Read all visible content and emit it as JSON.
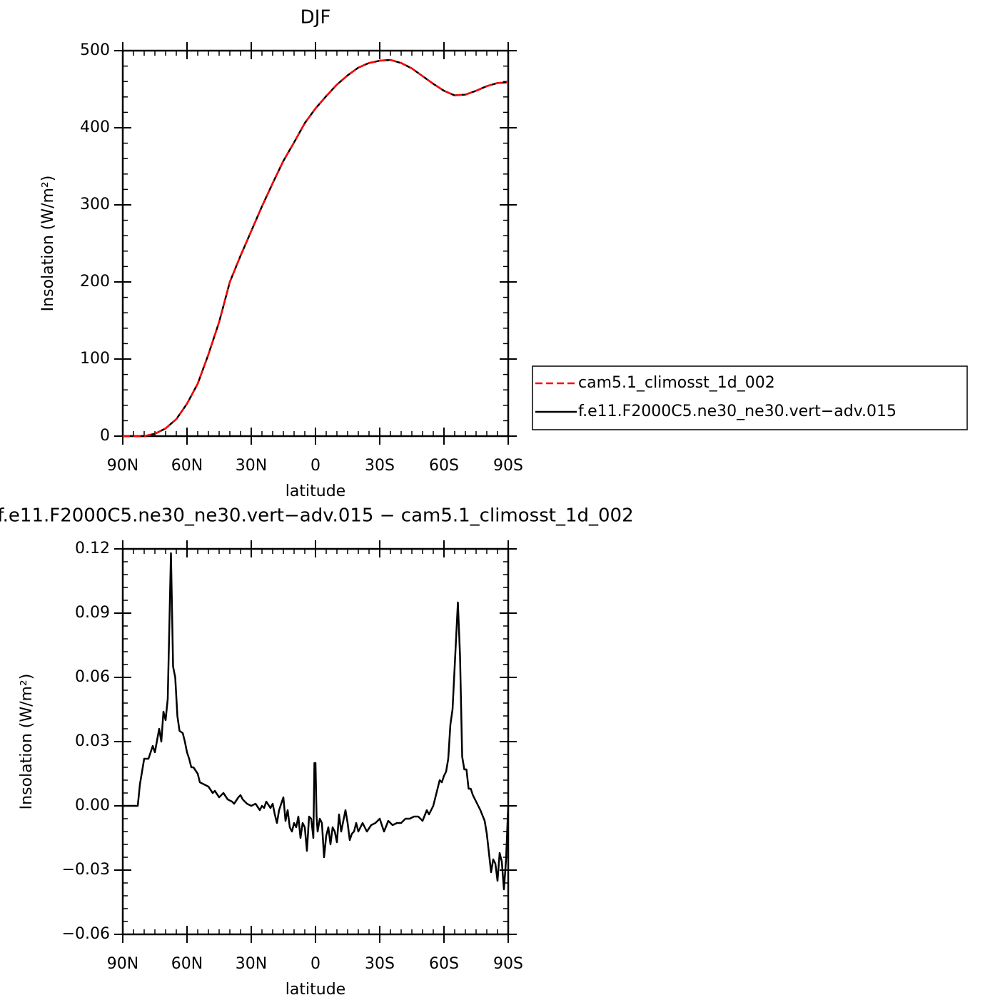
{
  "chart_data": [
    {
      "type": "line",
      "title": "DJF",
      "xlabel": "latitude",
      "ylabel": "Insolation (W/m²)",
      "x": [
        90,
        85,
        80,
        75,
        70,
        65,
        60,
        55,
        50,
        45,
        40,
        35,
        30,
        25,
        20,
        15,
        10,
        5,
        0,
        -5,
        -10,
        -15,
        -20,
        -25,
        -30,
        -35,
        -40,
        -45,
        -50,
        -55,
        -60,
        -65,
        -70,
        -75,
        -80,
        -85,
        -90
      ],
      "series": [
        {
          "name": "f.e11.F2000C5.ne30_ne30.vert−adv.015",
          "color": "#000000",
          "linestyle": "solid",
          "values": [
            0,
            0,
            0,
            3,
            10,
            22,
            42,
            68,
            106,
            148,
            200,
            234,
            266,
            298,
            328,
            357,
            381,
            406,
            425,
            441,
            456,
            468,
            478,
            484,
            487,
            488,
            484,
            477,
            467,
            457,
            448,
            442,
            443,
            448,
            454,
            458,
            459
          ]
        },
        {
          "name": "cam5.1_climosst_1d_002",
          "color": "#ff0000",
          "linestyle": "dashed",
          "values": [
            0,
            0,
            0,
            3,
            10,
            22,
            42,
            68,
            106,
            148,
            200,
            234,
            266,
            298,
            328,
            357,
            381,
            406,
            425,
            441,
            456,
            468,
            478,
            484,
            487,
            488,
            484,
            477,
            467,
            457,
            448,
            442,
            443,
            448,
            454,
            458,
            459
          ]
        }
      ],
      "legend": "right",
      "xlim": [
        90,
        -90
      ],
      "xticks": [
        {
          "value": 90,
          "label": "90N"
        },
        {
          "value": 60,
          "label": "60N"
        },
        {
          "value": 30,
          "label": "30N"
        },
        0,
        {
          "value": -30,
          "label": "30S"
        },
        {
          "value": -60,
          "label": "60S"
        },
        {
          "value": -90,
          "label": "90S"
        }
      ],
      "ylim": [
        0,
        500
      ],
      "yticks": [
        0,
        100,
        200,
        300,
        400,
        500
      ]
    },
    {
      "type": "line",
      "title": "f.e11.F2000C5.ne30_ne30.vert−adv.015 − cam5.1_climosst_1d_002",
      "xlabel": "latitude",
      "ylabel": "Insolation (W/m²)",
      "x": [
        90,
        85,
        83,
        82,
        80,
        78,
        76,
        75,
        73,
        72,
        71,
        70,
        69,
        67.5,
        66.5,
        65.5,
        64.5,
        63.5,
        62,
        61,
        60,
        59,
        58,
        57,
        55,
        54,
        52,
        50,
        48,
        47,
        45,
        43,
        41,
        39,
        38,
        36,
        35,
        34,
        32,
        30,
        28,
        26,
        25,
        24,
        23,
        21,
        20,
        19,
        18,
        17,
        15,
        14,
        13,
        12,
        11,
        10,
        9,
        8,
        7,
        6,
        5,
        4,
        3,
        2,
        1,
        0.5,
        0,
        -0.5,
        -1,
        -2,
        -3,
        -4,
        -5,
        -6,
        -7,
        -8,
        -9,
        -10,
        -11,
        -12,
        -14,
        -15,
        -16,
        -17,
        -18,
        -19,
        -20,
        -22,
        -24,
        -26,
        -28,
        -30,
        -32,
        -34,
        -36,
        -38,
        -40,
        -42,
        -44,
        -46,
        -48,
        -50,
        -52,
        -53,
        -55,
        -56,
        -58,
        -59,
        -60,
        -61,
        -62,
        -63,
        -64,
        -65,
        -66.5,
        -67.5,
        -68.5,
        -69.5,
        -70.5,
        -71.5,
        -72.5,
        -73.5,
        -75,
        -77,
        -79,
        -80,
        -81,
        -82,
        -83,
        -84,
        -85,
        -86,
        -87,
        -88,
        -89,
        -90
      ],
      "series": [
        {
          "color": "#000000",
          "linestyle": "solid",
          "values": [
            0,
            0,
            0,
            0.01,
            0.022,
            0.022,
            0.028,
            0.025,
            0.036,
            0.03,
            0.044,
            0.04,
            0.05,
            0.118,
            0.065,
            0.06,
            0.042,
            0.035,
            0.034,
            0.03,
            0.025,
            0.022,
            0.018,
            0.018,
            0.015,
            0.011,
            0.01,
            0.009,
            0.006,
            0.007,
            0.004,
            0.006,
            0.003,
            0.002,
            0.001,
            0.004,
            0.005,
            0.003,
            0.001,
            0,
            0.001,
            -0.002,
            0,
            -0.001,
            0.002,
            -0.001,
            0.001,
            -0.004,
            -0.008,
            -0.002,
            0.004,
            -0.007,
            -0.002,
            -0.01,
            -0.012,
            -0.008,
            -0.01,
            -0.005,
            -0.015,
            -0.008,
            -0.01,
            -0.021,
            -0.005,
            -0.006,
            -0.015,
            0.02,
            0.02,
            -0.005,
            -0.012,
            -0.006,
            -0.008,
            -0.024,
            -0.014,
            -0.01,
            -0.018,
            -0.01,
            -0.012,
            -0.017,
            -0.004,
            -0.012,
            -0.002,
            -0.008,
            -0.016,
            -0.013,
            -0.012,
            -0.008,
            -0.012,
            -0.008,
            -0.012,
            -0.009,
            -0.008,
            -0.006,
            -0.012,
            -0.007,
            -0.009,
            -0.008,
            -0.008,
            -0.006,
            -0.006,
            -0.005,
            -0.005,
            -0.007,
            -0.002,
            -0.004,
            0,
            0.004,
            0.012,
            0.011,
            0.014,
            0.016,
            0.022,
            0.038,
            0.045,
            0.065,
            0.095,
            0.07,
            0.023,
            0.017,
            0.017,
            0.008,
            0.008,
            0.005,
            0.002,
            -0.002,
            -0.007,
            -0.013,
            -0.022,
            -0.031,
            -0.025,
            -0.027,
            -0.035,
            -0.022,
            -0.026,
            -0.039,
            -0.025,
            0
          ]
        }
      ],
      "xlim": [
        90,
        -90
      ],
      "xticks": [
        {
          "value": 90,
          "label": "90N"
        },
        {
          "value": 60,
          "label": "60N"
        },
        {
          "value": 30,
          "label": "30N"
        },
        0,
        {
          "value": -30,
          "label": "30S"
        },
        {
          "value": -60,
          "label": "60S"
        },
        {
          "value": -90,
          "label": "90S"
        }
      ],
      "ylim": [
        -0.06,
        0.12
      ],
      "yticks": [
        {
          "value": -0.06,
          "label": "−0.06"
        },
        {
          "value": -0.03,
          "label": "−0.03"
        },
        {
          "value": 0,
          "label": "0.00"
        },
        0.03,
        0.06,
        0.09,
        0.12
      ]
    }
  ]
}
